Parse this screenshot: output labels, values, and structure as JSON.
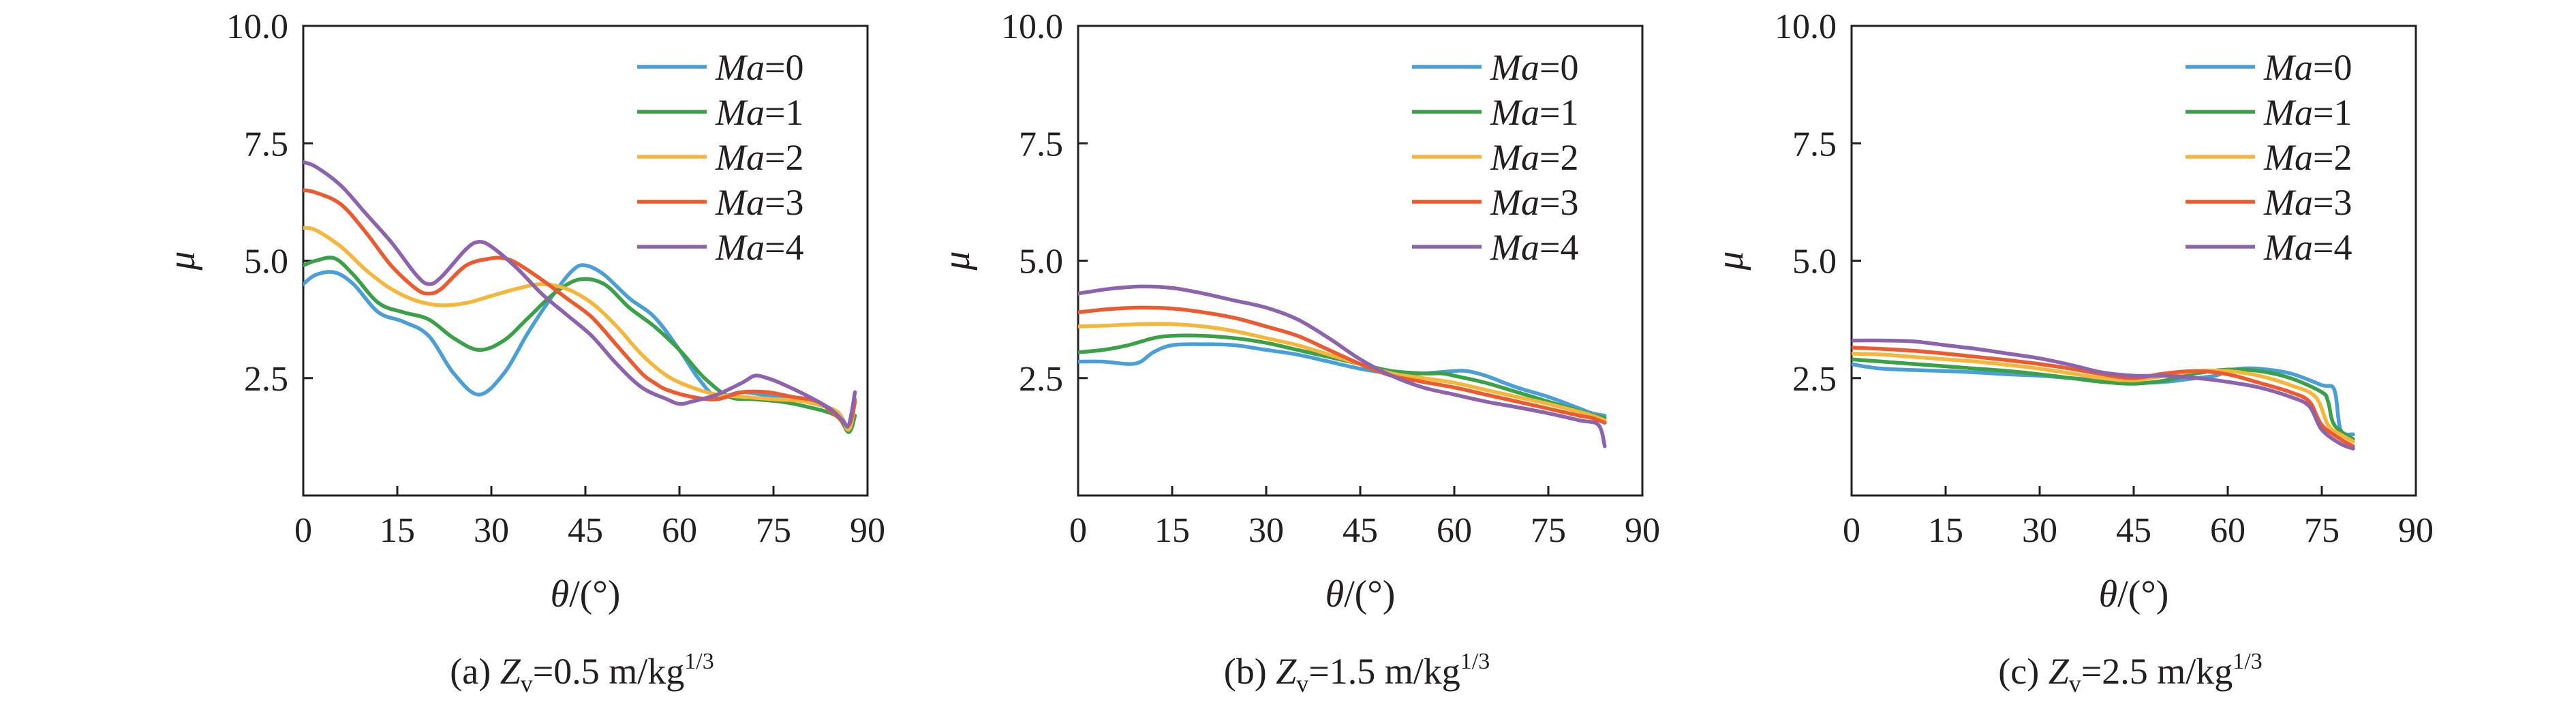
{
  "colors": [
    "#4a9fd8",
    "#3aa148",
    "#f6b63a",
    "#ec5a2e",
    "#8e63ad"
  ],
  "chart_data": [
    {
      "type": "line",
      "caption": {
        "prefix": "(a) ",
        "var": "Z",
        "sub": "v",
        "eq": "=0.5 m/kg",
        "sup": "1/3"
      },
      "xlabel": {
        "var": "θ",
        "unit": "/(°)"
      },
      "ylabel": "μ",
      "xlim": [
        0,
        90
      ],
      "ylim": [
        0,
        10
      ],
      "xticks": [
        "0",
        "15",
        "30",
        "45",
        "60",
        "75",
        "90"
      ],
      "yticks": [
        "2.5",
        "5.0",
        "7.5",
        "10.0"
      ],
      "legend": {
        "position": "top-right"
      },
      "series": [
        {
          "name": "Ma=0",
          "x": [
            0,
            2,
            5,
            8,
            12,
            16,
            20,
            24,
            28,
            32,
            36,
            40,
            43,
            45,
            48,
            52,
            56,
            60,
            63,
            66,
            70,
            75,
            80,
            85,
            87,
            88
          ],
          "y": [
            4.5,
            4.7,
            4.75,
            4.5,
            3.9,
            3.7,
            3.4,
            2.6,
            2.15,
            2.6,
            3.5,
            4.3,
            4.8,
            4.9,
            4.7,
            4.2,
            3.8,
            3.1,
            2.5,
            2.1,
            2.2,
            2.1,
            2.0,
            1.8,
            1.45,
            2.05
          ]
        },
        {
          "name": "Ma=1",
          "x": [
            0,
            2,
            5,
            8,
            12,
            16,
            20,
            24,
            28,
            32,
            36,
            40,
            44,
            48,
            52,
            56,
            60,
            64,
            68,
            72,
            76,
            80,
            85,
            87,
            88
          ],
          "y": [
            4.9,
            5.0,
            5.05,
            4.7,
            4.1,
            3.9,
            3.75,
            3.35,
            3.1,
            3.3,
            3.8,
            4.3,
            4.6,
            4.5,
            4.0,
            3.6,
            3.1,
            2.5,
            2.1,
            2.05,
            2.0,
            1.9,
            1.7,
            1.35,
            1.7
          ]
        },
        {
          "name": "Ma=2",
          "x": [
            0,
            2,
            6,
            10,
            14,
            18,
            22,
            26,
            30,
            34,
            38,
            42,
            46,
            50,
            54,
            58,
            62,
            66,
            70,
            75,
            80,
            85,
            87,
            88
          ],
          "y": [
            5.7,
            5.65,
            5.3,
            4.8,
            4.4,
            4.15,
            4.05,
            4.1,
            4.25,
            4.4,
            4.5,
            4.4,
            4.1,
            3.6,
            3.0,
            2.55,
            2.3,
            2.15,
            2.1,
            2.05,
            2.0,
            1.8,
            1.4,
            2.0
          ]
        },
        {
          "name": "Ma=3",
          "x": [
            0,
            2,
            6,
            10,
            14,
            18,
            20,
            22,
            26,
            30,
            32,
            34,
            38,
            42,
            46,
            50,
            54,
            56,
            58,
            62,
            66,
            70,
            74,
            78,
            82,
            85,
            87,
            88
          ],
          "y": [
            6.5,
            6.45,
            6.2,
            5.6,
            4.9,
            4.4,
            4.3,
            4.4,
            4.9,
            5.05,
            5.05,
            4.95,
            4.6,
            4.2,
            3.8,
            3.2,
            2.6,
            2.4,
            2.25,
            2.1,
            2.05,
            2.2,
            2.2,
            2.1,
            2.0,
            1.7,
            1.5,
            2.0
          ]
        },
        {
          "name": "Ma=4",
          "x": [
            0,
            2,
            6,
            10,
            14,
            18,
            20,
            22,
            26,
            28,
            30,
            34,
            38,
            42,
            46,
            50,
            54,
            58,
            60,
            62,
            66,
            70,
            72,
            74,
            76,
            80,
            84,
            86,
            87,
            88
          ],
          "y": [
            7.1,
            7.0,
            6.6,
            6.0,
            5.4,
            4.7,
            4.5,
            4.65,
            5.25,
            5.4,
            5.3,
            4.85,
            4.3,
            3.85,
            3.4,
            2.8,
            2.3,
            2.05,
            1.95,
            2.0,
            2.15,
            2.4,
            2.55,
            2.5,
            2.4,
            2.15,
            1.85,
            1.6,
            1.5,
            2.2
          ]
        }
      ]
    },
    {
      "type": "line",
      "caption": {
        "prefix": "(b) ",
        "var": "Z",
        "sub": "v",
        "eq": "=1.5 m/kg",
        "sup": "1/3"
      },
      "xlabel": {
        "var": "θ",
        "unit": "/(°)"
      },
      "ylabel": "μ",
      "xlim": [
        0,
        90
      ],
      "ylim": [
        0,
        10
      ],
      "xticks": [
        "0",
        "15",
        "30",
        "45",
        "60",
        "75",
        "90"
      ],
      "yticks": [
        "2.5",
        "5.0",
        "7.5",
        "10.0"
      ],
      "legend": {
        "position": "top-right"
      },
      "series": [
        {
          "name": "Ma=0",
          "x": [
            0,
            4,
            8,
            10,
            12,
            15,
            20,
            25,
            30,
            35,
            40,
            45,
            50,
            55,
            60,
            62,
            65,
            70,
            75,
            80,
            82,
            84
          ],
          "y": [
            2.85,
            2.85,
            2.8,
            2.85,
            3.05,
            3.2,
            3.22,
            3.2,
            3.1,
            3.0,
            2.85,
            2.7,
            2.6,
            2.6,
            2.65,
            2.65,
            2.55,
            2.3,
            2.1,
            1.85,
            1.75,
            1.7
          ]
        },
        {
          "name": "Ma=1",
          "x": [
            0,
            4,
            8,
            12,
            15,
            20,
            25,
            30,
            35,
            40,
            45,
            50,
            55,
            58,
            60,
            65,
            70,
            75,
            80,
            82,
            84
          ],
          "y": [
            3.05,
            3.1,
            3.2,
            3.35,
            3.4,
            3.4,
            3.35,
            3.25,
            3.1,
            2.95,
            2.8,
            2.65,
            2.6,
            2.6,
            2.55,
            2.4,
            2.2,
            2.0,
            1.8,
            1.72,
            1.65
          ]
        },
        {
          "name": "Ma=2",
          "x": [
            0,
            5,
            10,
            15,
            20,
            25,
            30,
            35,
            40,
            45,
            50,
            55,
            60,
            65,
            70,
            75,
            80,
            82,
            84
          ],
          "y": [
            3.6,
            3.62,
            3.65,
            3.65,
            3.6,
            3.5,
            3.35,
            3.2,
            3.0,
            2.8,
            2.6,
            2.5,
            2.4,
            2.25,
            2.1,
            1.95,
            1.78,
            1.7,
            1.6
          ]
        },
        {
          "name": "Ma=3",
          "x": [
            0,
            5,
            10,
            15,
            20,
            25,
            30,
            35,
            40,
            45,
            50,
            55,
            60,
            65,
            70,
            75,
            80,
            82,
            84
          ],
          "y": [
            3.9,
            3.97,
            4.0,
            3.98,
            3.9,
            3.78,
            3.6,
            3.4,
            3.1,
            2.8,
            2.55,
            2.42,
            2.3,
            2.15,
            2.0,
            1.85,
            1.7,
            1.65,
            1.55
          ]
        },
        {
          "name": "Ma=4",
          "x": [
            0,
            5,
            10,
            15,
            20,
            25,
            30,
            35,
            40,
            45,
            50,
            55,
            60,
            65,
            70,
            75,
            80,
            83,
            84
          ],
          "y": [
            4.3,
            4.4,
            4.45,
            4.42,
            4.3,
            4.15,
            4.0,
            3.75,
            3.35,
            2.9,
            2.55,
            2.3,
            2.15,
            2.0,
            1.88,
            1.75,
            1.6,
            1.5,
            1.05
          ]
        }
      ]
    },
    {
      "type": "line",
      "caption": {
        "prefix": "(c) ",
        "var": "Z",
        "sub": "v",
        "eq": "=2.5 m/kg",
        "sup": "1/3"
      },
      "xlabel": {
        "var": "θ",
        "unit": "/(°)"
      },
      "ylabel": "μ",
      "xlim": [
        0,
        90
      ],
      "ylim": [
        0,
        10
      ],
      "xticks": [
        "0",
        "15",
        "30",
        "45",
        "60",
        "75",
        "90"
      ],
      "yticks": [
        "2.5",
        "5.0",
        "7.5",
        "10.0"
      ],
      "legend": {
        "position": "top-right"
      },
      "series": [
        {
          "name": "Ma=0",
          "x": [
            0,
            2,
            5,
            10,
            15,
            20,
            25,
            30,
            35,
            40,
            45,
            50,
            55,
            58,
            60,
            62,
            65,
            70,
            75,
            77,
            78,
            80
          ],
          "y": [
            2.8,
            2.75,
            2.7,
            2.67,
            2.65,
            2.62,
            2.58,
            2.55,
            2.5,
            2.45,
            2.4,
            2.42,
            2.5,
            2.55,
            2.65,
            2.7,
            2.7,
            2.6,
            2.35,
            2.25,
            1.4,
            1.3
          ]
        },
        {
          "name": "Ma=1",
          "x": [
            0,
            5,
            10,
            15,
            20,
            25,
            30,
            35,
            40,
            45,
            50,
            55,
            60,
            65,
            70,
            75,
            76,
            77,
            80
          ],
          "y": [
            2.9,
            2.85,
            2.8,
            2.75,
            2.7,
            2.65,
            2.58,
            2.5,
            2.42,
            2.38,
            2.45,
            2.6,
            2.68,
            2.65,
            2.5,
            2.2,
            2.0,
            1.5,
            1.2
          ]
        },
        {
          "name": "Ma=2",
          "x": [
            0,
            5,
            10,
            15,
            20,
            25,
            30,
            35,
            40,
            45,
            50,
            55,
            60,
            65,
            70,
            74,
            76,
            78,
            80
          ],
          "y": [
            3.02,
            3.0,
            2.95,
            2.9,
            2.85,
            2.78,
            2.7,
            2.6,
            2.5,
            2.45,
            2.55,
            2.65,
            2.65,
            2.55,
            2.35,
            2.1,
            1.5,
            1.3,
            1.15
          ]
        },
        {
          "name": "Ma=3",
          "x": [
            0,
            5,
            10,
            15,
            20,
            25,
            30,
            35,
            40,
            45,
            50,
            55,
            60,
            65,
            70,
            73,
            75,
            78,
            80
          ],
          "y": [
            3.15,
            3.12,
            3.08,
            3.02,
            2.95,
            2.88,
            2.8,
            2.7,
            2.58,
            2.5,
            2.6,
            2.65,
            2.58,
            2.4,
            2.2,
            2.0,
            1.5,
            1.2,
            1.05
          ]
        },
        {
          "name": "Ma=4",
          "x": [
            0,
            5,
            10,
            15,
            20,
            25,
            30,
            35,
            40,
            45,
            50,
            55,
            60,
            65,
            70,
            73,
            75,
            78,
            80
          ],
          "y": [
            3.3,
            3.3,
            3.28,
            3.2,
            3.12,
            3.02,
            2.92,
            2.78,
            2.62,
            2.55,
            2.55,
            2.5,
            2.42,
            2.3,
            2.1,
            1.9,
            1.4,
            1.1,
            1.0
          ]
        }
      ]
    }
  ]
}
